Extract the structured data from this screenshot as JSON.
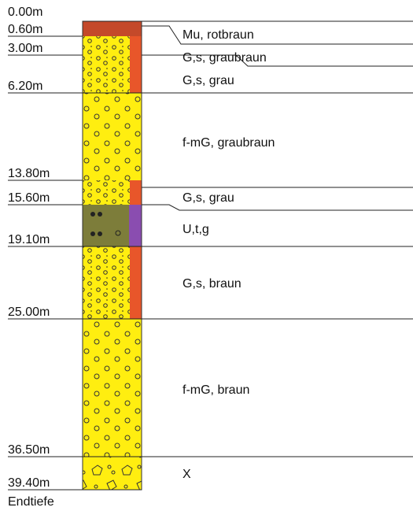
{
  "top_depth": "0.00m",
  "layers": [
    {
      "depth": "0.60m",
      "description": "Mu, rotbraun"
    },
    {
      "depth": "3.00m",
      "description": "G,s, graubraun"
    },
    {
      "depth": "6.20m",
      "description": "G,s, grau"
    },
    {
      "depth": "13.80m",
      "description": "f-mG, graubraun"
    },
    {
      "depth": "15.60m",
      "description": "G,s, grau"
    },
    {
      "depth": "19.10m",
      "description": "U,t,g"
    },
    {
      "depth": "25.00m",
      "description": "G,s, braun"
    },
    {
      "depth": "36.50m",
      "description": "f-mG, braun"
    },
    {
      "depth": "39.40m",
      "description": "X"
    }
  ],
  "end_label": "Endtiefe"
}
